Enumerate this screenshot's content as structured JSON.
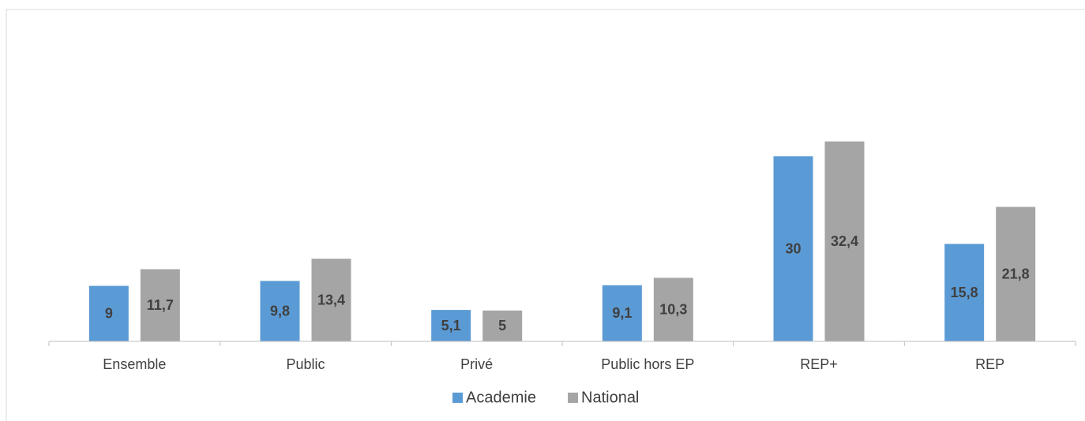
{
  "chart_data": {
    "type": "bar",
    "categories": [
      "Ensemble",
      "Public",
      "Privé",
      "Public hors EP",
      "REP+",
      "REP"
    ],
    "series": [
      {
        "name": "Academie",
        "color": "#5b9bd5",
        "values": [
          9,
          9.8,
          5.1,
          9.1,
          30,
          15.8
        ],
        "value_labels": [
          "9",
          "9,8",
          "5,1",
          "9,1",
          "30",
          "15,8"
        ]
      },
      {
        "name": "National",
        "color": "#a5a5a5",
        "values": [
          11.7,
          13.4,
          5,
          10.3,
          32.4,
          21.8
        ],
        "value_labels": [
          "11,7",
          "13,4",
          "5",
          "10,3",
          "32,4",
          "21,8"
        ]
      }
    ],
    "ylim": [
      0,
      40
    ],
    "legend": "bottom"
  }
}
